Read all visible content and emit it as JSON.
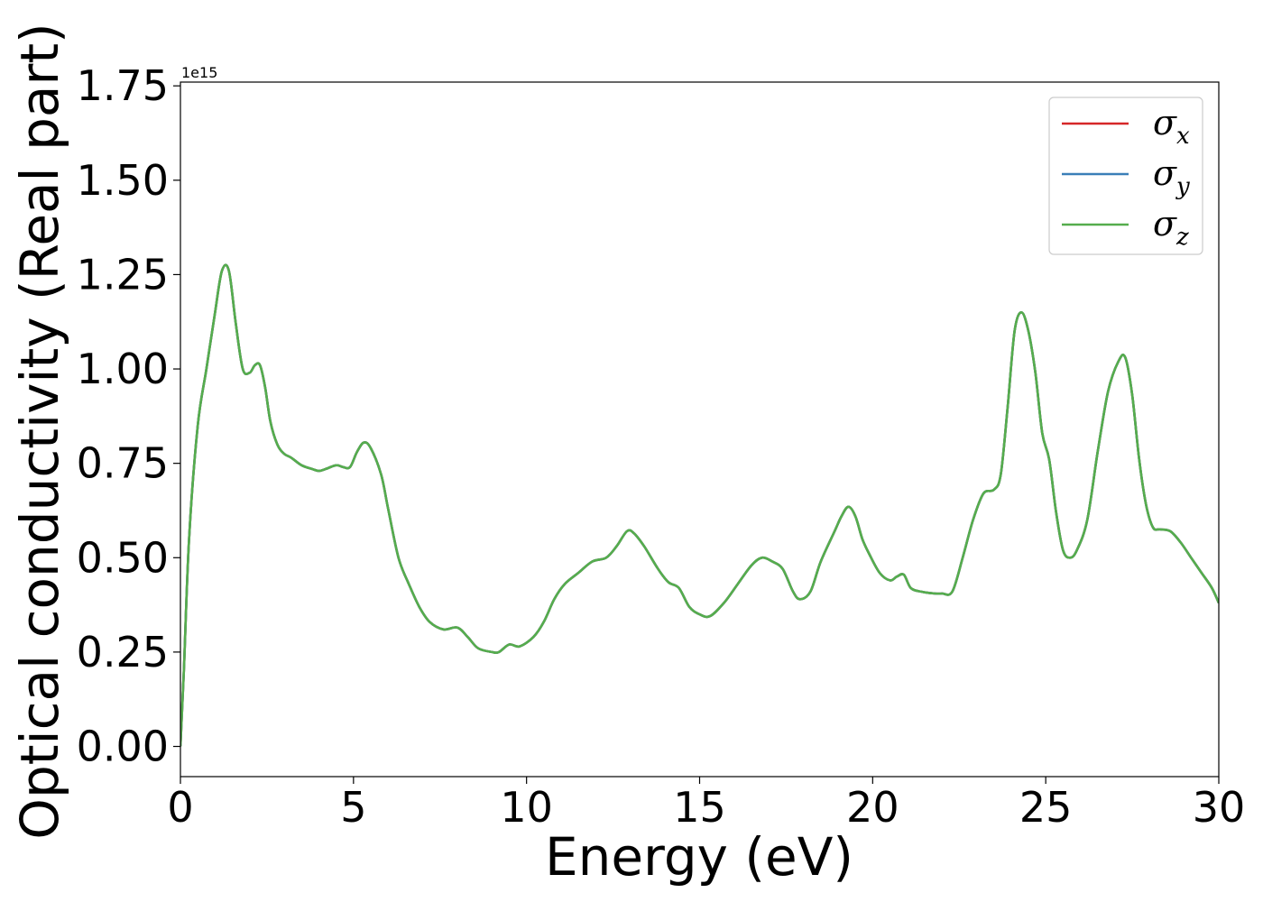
{
  "chart_data": {
    "type": "line",
    "xlabel": "Energy (eV)",
    "ylabel": "Optical conductivity (Real part)",
    "y_offset_label": "1e15",
    "xlim": [
      0,
      30
    ],
    "ylim": [
      -0.08,
      1.76
    ],
    "xticks": [
      0,
      5,
      10,
      15,
      20,
      25,
      30
    ],
    "xtick_labels": [
      "0",
      "5",
      "10",
      "15",
      "20",
      "25",
      "30"
    ],
    "yticks": [
      0.0,
      0.25,
      0.5,
      0.75,
      1.0,
      1.25,
      1.5,
      1.75
    ],
    "ytick_labels": [
      "0.00",
      "0.25",
      "0.50",
      "0.75",
      "1.00",
      "1.25",
      "1.50",
      "1.75"
    ],
    "grid": false,
    "legend_position": "top-right",
    "x": [
      0,
      0.1,
      0.25,
      0.5,
      0.75,
      1.0,
      1.2,
      1.4,
      1.6,
      1.8,
      2.0,
      2.15,
      2.3,
      2.45,
      2.6,
      2.8,
      3.0,
      3.2,
      3.5,
      3.8,
      4.0,
      4.2,
      4.5,
      4.7,
      4.9,
      5.1,
      5.3,
      5.5,
      5.8,
      6.0,
      6.3,
      6.6,
      6.9,
      7.2,
      7.6,
      8.0,
      8.3,
      8.6,
      9.0,
      9.2,
      9.5,
      9.8,
      10.2,
      10.5,
      10.8,
      11.1,
      11.5,
      11.9,
      12.3,
      12.6,
      12.9,
      13.1,
      13.4,
      13.8,
      14.1,
      14.4,
      14.7,
      15.0,
      15.3,
      15.7,
      16.1,
      16.5,
      16.8,
      17.1,
      17.4,
      17.7,
      17.9,
      18.2,
      18.5,
      18.9,
      19.1,
      19.3,
      19.5,
      19.7,
      19.9,
      20.2,
      20.5,
      20.7,
      20.9,
      21.1,
      21.4,
      21.8,
      22.0,
      22.3,
      22.6,
      22.9,
      23.2,
      23.5,
      23.7,
      23.9,
      24.1,
      24.3,
      24.5,
      24.7,
      24.9,
      25.1,
      25.3,
      25.5,
      25.7,
      25.9,
      26.2,
      26.5,
      26.8,
      27.1,
      27.3,
      27.5,
      27.7,
      27.9,
      28.1,
      28.3,
      28.6,
      28.9,
      29.2,
      29.5,
      29.8,
      30.0
    ],
    "series": [
      {
        "name": "σx",
        "color": "#d62728",
        "values": [
          0.0,
          0.2,
          0.55,
          0.85,
          1.0,
          1.15,
          1.26,
          1.26,
          1.12,
          1.0,
          0.99,
          1.01,
          1.01,
          0.95,
          0.86,
          0.8,
          0.775,
          0.765,
          0.745,
          0.735,
          0.73,
          0.735,
          0.745,
          0.74,
          0.74,
          0.78,
          0.805,
          0.79,
          0.72,
          0.63,
          0.5,
          0.43,
          0.37,
          0.33,
          0.31,
          0.315,
          0.29,
          0.26,
          0.25,
          0.25,
          0.27,
          0.265,
          0.29,
          0.33,
          0.39,
          0.43,
          0.46,
          0.49,
          0.5,
          0.53,
          0.57,
          0.565,
          0.53,
          0.47,
          0.435,
          0.42,
          0.37,
          0.35,
          0.345,
          0.38,
          0.43,
          0.48,
          0.5,
          0.49,
          0.47,
          0.41,
          0.39,
          0.41,
          0.49,
          0.57,
          0.61,
          0.635,
          0.61,
          0.55,
          0.51,
          0.46,
          0.44,
          0.45,
          0.455,
          0.42,
          0.41,
          0.405,
          0.405,
          0.41,
          0.5,
          0.6,
          0.67,
          0.68,
          0.72,
          0.9,
          1.1,
          1.15,
          1.1,
          0.99,
          0.83,
          0.76,
          0.62,
          0.52,
          0.5,
          0.52,
          0.6,
          0.78,
          0.94,
          1.02,
          1.03,
          0.93,
          0.76,
          0.64,
          0.58,
          0.575,
          0.57,
          0.54,
          0.5,
          0.46,
          0.42,
          0.38
        ]
      },
      {
        "name": "σy",
        "color": "#3a7fb8",
        "values": [
          0.0,
          0.2,
          0.55,
          0.85,
          1.0,
          1.15,
          1.26,
          1.26,
          1.12,
          1.0,
          0.99,
          1.01,
          1.01,
          0.95,
          0.86,
          0.8,
          0.775,
          0.765,
          0.745,
          0.735,
          0.73,
          0.735,
          0.745,
          0.74,
          0.74,
          0.78,
          0.805,
          0.79,
          0.72,
          0.63,
          0.5,
          0.43,
          0.37,
          0.33,
          0.31,
          0.315,
          0.29,
          0.26,
          0.25,
          0.25,
          0.27,
          0.265,
          0.29,
          0.33,
          0.39,
          0.43,
          0.46,
          0.49,
          0.5,
          0.53,
          0.57,
          0.565,
          0.53,
          0.47,
          0.435,
          0.42,
          0.37,
          0.35,
          0.345,
          0.38,
          0.43,
          0.48,
          0.5,
          0.49,
          0.47,
          0.41,
          0.39,
          0.41,
          0.49,
          0.57,
          0.61,
          0.635,
          0.61,
          0.55,
          0.51,
          0.46,
          0.44,
          0.45,
          0.455,
          0.42,
          0.41,
          0.405,
          0.405,
          0.41,
          0.5,
          0.6,
          0.67,
          0.68,
          0.72,
          0.9,
          1.1,
          1.15,
          1.1,
          0.99,
          0.83,
          0.76,
          0.62,
          0.52,
          0.5,
          0.52,
          0.6,
          0.78,
          0.94,
          1.02,
          1.03,
          0.93,
          0.76,
          0.64,
          0.58,
          0.575,
          0.57,
          0.54,
          0.5,
          0.46,
          0.42,
          0.38
        ]
      },
      {
        "name": "σz",
        "color": "#55ad4d",
        "values": [
          0.0,
          0.2,
          0.55,
          0.85,
          1.0,
          1.15,
          1.26,
          1.26,
          1.12,
          1.0,
          0.99,
          1.01,
          1.01,
          0.95,
          0.86,
          0.8,
          0.775,
          0.765,
          0.745,
          0.735,
          0.73,
          0.735,
          0.745,
          0.74,
          0.74,
          0.78,
          0.805,
          0.79,
          0.72,
          0.63,
          0.5,
          0.43,
          0.37,
          0.33,
          0.31,
          0.315,
          0.29,
          0.26,
          0.25,
          0.25,
          0.27,
          0.265,
          0.29,
          0.33,
          0.39,
          0.43,
          0.46,
          0.49,
          0.5,
          0.53,
          0.57,
          0.565,
          0.53,
          0.47,
          0.435,
          0.42,
          0.37,
          0.35,
          0.345,
          0.38,
          0.43,
          0.48,
          0.5,
          0.49,
          0.47,
          0.41,
          0.39,
          0.41,
          0.49,
          0.57,
          0.61,
          0.635,
          0.61,
          0.55,
          0.51,
          0.46,
          0.44,
          0.45,
          0.455,
          0.42,
          0.41,
          0.405,
          0.405,
          0.41,
          0.5,
          0.6,
          0.67,
          0.68,
          0.72,
          0.9,
          1.1,
          1.15,
          1.1,
          0.99,
          0.83,
          0.76,
          0.62,
          0.52,
          0.5,
          0.52,
          0.6,
          0.78,
          0.94,
          1.02,
          1.03,
          0.93,
          0.76,
          0.64,
          0.58,
          0.575,
          0.57,
          0.54,
          0.5,
          0.46,
          0.42,
          0.38
        ]
      }
    ],
    "legend": [
      {
        "symbol": "σ",
        "sub": "x",
        "color": "#d62728"
      },
      {
        "symbol": "σ",
        "sub": "y",
        "color": "#3a7fb8"
      },
      {
        "symbol": "σ",
        "sub": "z",
        "color": "#55ad4d"
      }
    ]
  }
}
